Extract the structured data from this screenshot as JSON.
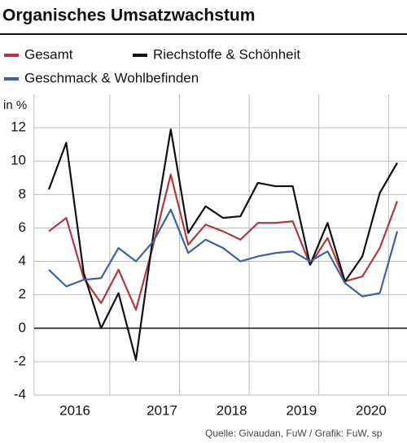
{
  "chart_data": {
    "type": "line",
    "title": "Organisches Umsatzwachstum",
    "y_label": "in %",
    "source": "Quelle: Givaudan, FuW / Grafik: FuW, sp",
    "categories": [
      null,
      "2016",
      null,
      null,
      null,
      null,
      "2017",
      null,
      null,
      null,
      "2018",
      null,
      null,
      null,
      "2019",
      null,
      null,
      null,
      "2020",
      null,
      null
    ],
    "series": [
      {
        "name": "Gesamt",
        "color": "#b0383e",
        "values": [
          5.8,
          6.6,
          3.0,
          1.5,
          3.5,
          1.1,
          5.0,
          9.2,
          5.0,
          6.2,
          5.8,
          5.3,
          6.3,
          6.3,
          6.4,
          3.8,
          5.4,
          2.8,
          3.1,
          4.8,
          7.6
        ]
      },
      {
        "name": "Riechstoffe & Schönheit",
        "color": "#111111",
        "values": [
          8.3,
          11.1,
          3.3,
          0.0,
          2.1,
          -1.9,
          5.6,
          11.9,
          5.7,
          7.3,
          6.6,
          6.7,
          8.7,
          8.5,
          8.5,
          3.8,
          6.3,
          2.8,
          4.3,
          8.1,
          9.9
        ]
      },
      {
        "name": "Geschmack & Wohlbefinden",
        "color": "#3a62a7",
        "values": [
          3.5,
          2.5,
          2.9,
          3.0,
          4.8,
          4.0,
          5.2,
          7.1,
          4.5,
          5.3,
          4.8,
          4.0,
          4.3,
          4.5,
          4.6,
          4.0,
          4.6,
          2.7,
          1.9,
          2.1,
          5.8
        ]
      }
    ],
    "ylim": [
      -4,
      14
    ],
    "yticks": [
      -4,
      -2,
      0,
      2,
      4,
      6,
      8,
      10,
      12
    ],
    "grid": true
  }
}
